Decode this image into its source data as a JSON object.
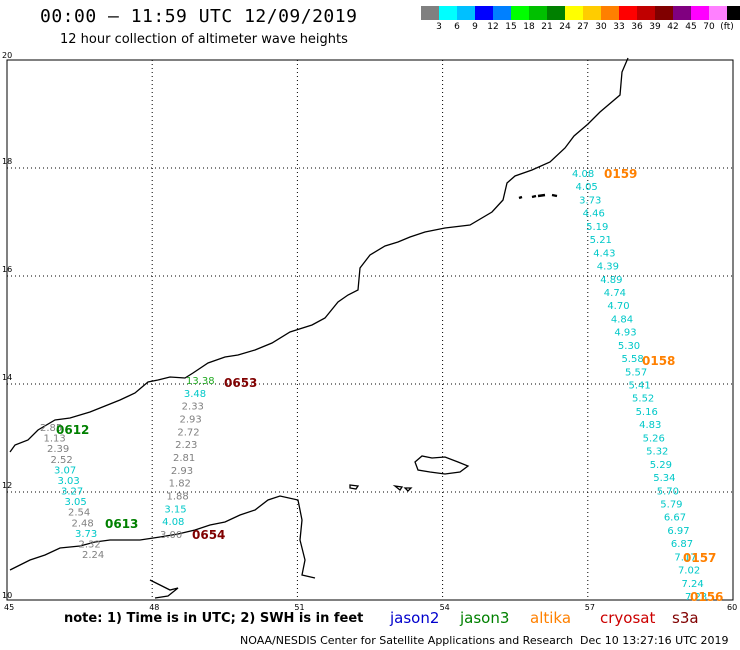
{
  "header": {
    "title": "00:00 – 11:59 UTC 12/09/2019",
    "subtitle": "12 hour collection of altimeter wave heights"
  },
  "legend": {
    "colors": [
      "#808080",
      "#00ffff",
      "#00c0ff",
      "#0000ff",
      "#0080ff",
      "#00ff00",
      "#00c000",
      "#008000",
      "#ffff00",
      "#ffcc00",
      "#ff8000",
      "#ff0000",
      "#c00000",
      "#800000",
      "#800080",
      "#ff00ff",
      "#ff80ff",
      "#000000"
    ],
    "labels": [
      "3",
      "6",
      "9",
      "12",
      "15",
      "18",
      "21",
      "24",
      "27",
      "30",
      "33",
      "36",
      "39",
      "42",
      "45",
      "70",
      "(ft)"
    ]
  },
  "axes": {
    "lat_labels": [
      "20",
      "18",
      "16",
      "14",
      "12",
      "10"
    ],
    "lon_labels": [
      "45",
      "48",
      "51",
      "54",
      "57",
      "60"
    ]
  },
  "tracks": [
    {
      "label": "0612",
      "color": "#008000",
      "points": [
        {
          "v": "2.85",
          "c": "#808080"
        },
        {
          "v": "1.13",
          "c": "#808080"
        },
        {
          "v": "2.39",
          "c": "#808080"
        },
        {
          "v": "2.52",
          "c": "#808080"
        },
        {
          "v": "3.07",
          "c": "#00c8c8"
        },
        {
          "v": "3.03",
          "c": "#00c8c8"
        },
        {
          "v": "3.27",
          "c": "#00c8c8"
        },
        {
          "v": "3.05",
          "c": "#00c8c8"
        },
        {
          "v": "2.54",
          "c": "#808080"
        },
        {
          "v": "2.48",
          "c": "#808080"
        },
        {
          "v": "3.73",
          "c": "#00c8c8"
        },
        {
          "v": "2.32",
          "c": "#808080"
        },
        {
          "v": "2.24",
          "c": "#808080"
        }
      ]
    },
    {
      "label": "0613",
      "color": "#008000",
      "points": []
    },
    {
      "label": "0653",
      "color": "#800000",
      "points": [
        {
          "v": "13.38",
          "c": "#22aa22"
        },
        {
          "v": "3.48",
          "c": "#00c8c8"
        },
        {
          "v": "2.33",
          "c": "#808080"
        },
        {
          "v": "2.93",
          "c": "#808080"
        },
        {
          "v": "2.72",
          "c": "#808080"
        },
        {
          "v": "2.23",
          "c": "#808080"
        },
        {
          "v": "2.81",
          "c": "#808080"
        },
        {
          "v": "2.93",
          "c": "#808080"
        },
        {
          "v": "1.82",
          "c": "#808080"
        },
        {
          "v": "1.88",
          "c": "#808080"
        },
        {
          "v": "3.15",
          "c": "#00c8c8"
        },
        {
          "v": "4.08",
          "c": "#00c8c8"
        },
        {
          "v": "3.00",
          "c": "#808080"
        }
      ]
    },
    {
      "label": "0654",
      "color": "#800000",
      "points": []
    },
    {
      "label": "0159",
      "color": "#ff8000",
      "points": [
        {
          "v": "4.08",
          "c": "#00c8c8"
        },
        {
          "v": "4.05",
          "c": "#00c8c8"
        },
        {
          "v": "3.73",
          "c": "#00c8c8"
        },
        {
          "v": "4.46",
          "c": "#00c8c8"
        },
        {
          "v": "5.19",
          "c": "#00c8c8"
        },
        {
          "v": "5.21",
          "c": "#00c8c8"
        },
        {
          "v": "4.43",
          "c": "#00c8c8"
        },
        {
          "v": "4.39",
          "c": "#00c8c8"
        },
        {
          "v": "4.89",
          "c": "#00c8c8"
        },
        {
          "v": "4.74",
          "c": "#00c8c8"
        },
        {
          "v": "4.70",
          "c": "#00c8c8"
        },
        {
          "v": "4.84",
          "c": "#00c8c8"
        },
        {
          "v": "4.93",
          "c": "#00c8c8"
        },
        {
          "v": "5.30",
          "c": "#00c8c8"
        },
        {
          "v": "5.58",
          "c": "#00c8c8"
        },
        {
          "v": "5.57",
          "c": "#00c8c8"
        },
        {
          "v": "5.41",
          "c": "#00c8c8"
        },
        {
          "v": "5.52",
          "c": "#00c8c8"
        },
        {
          "v": "5.16",
          "c": "#00c8c8"
        },
        {
          "v": "4.83",
          "c": "#00c8c8"
        },
        {
          "v": "5.26",
          "c": "#00c8c8"
        },
        {
          "v": "5.32",
          "c": "#00c8c8"
        },
        {
          "v": "5.29",
          "c": "#00c8c8"
        },
        {
          "v": "5.34",
          "c": "#00c8c8"
        },
        {
          "v": "5.70",
          "c": "#00c8c8"
        },
        {
          "v": "5.79",
          "c": "#00c8c8"
        },
        {
          "v": "6.67",
          "c": "#00c8c8"
        },
        {
          "v": "6.97",
          "c": "#00c8c8"
        },
        {
          "v": "6.87",
          "c": "#00c8c8"
        },
        {
          "v": "7.17",
          "c": "#00c8c8"
        },
        {
          "v": "7.02",
          "c": "#00c8c8"
        },
        {
          "v": "7.24",
          "c": "#00c8c8"
        },
        {
          "v": "7.23",
          "c": "#00c8c8"
        }
      ]
    },
    {
      "label": "0158",
      "color": "#ff8000",
      "points": []
    },
    {
      "label": "0157",
      "color": "#ff8000",
      "points": []
    },
    {
      "label": "0156",
      "color": "#ff8000",
      "points": []
    }
  ],
  "footer": {
    "note": "note: 1) Time is in UTC; 2) SWH is in feet",
    "satellites": [
      {
        "name": "jason2",
        "color": "#0000cc"
      },
      {
        "name": "jason3",
        "color": "#008000"
      },
      {
        "name": "altika",
        "color": "#ff8000"
      },
      {
        "name": "cryosat",
        "color": "#cc0000"
      },
      {
        "name": "s3a",
        "color": "#800000"
      }
    ],
    "credit": "NOAA/NESDIS Center for Satellite Applications and Research",
    "timestamp": "Dec 10 13:27:16 UTC 2019"
  }
}
